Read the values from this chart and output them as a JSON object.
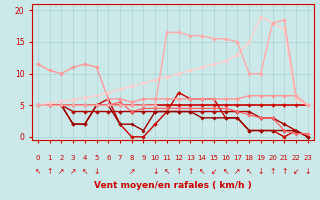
{
  "xlabel": "Vent moyen/en rafales ( km/h )",
  "xlim": [
    -0.5,
    23.5
  ],
  "ylim": [
    -0.5,
    21
  ],
  "yticks": [
    0,
    5,
    10,
    15,
    20
  ],
  "xticks": [
    0,
    1,
    2,
    3,
    4,
    5,
    6,
    7,
    8,
    9,
    10,
    11,
    12,
    13,
    14,
    15,
    16,
    17,
    18,
    19,
    20,
    21,
    22,
    23
  ],
  "bg_color": "#cce9e9",
  "grid_color": "#aad4d4",
  "lines": [
    {
      "x": [
        0,
        1,
        2,
        3,
        4,
        5,
        6,
        7,
        8,
        9,
        10,
        11,
        12,
        13,
        14,
        15,
        16,
        17,
        18,
        19,
        20,
        21,
        22,
        23
      ],
      "y": [
        5,
        5,
        5,
        5,
        5,
        5,
        5,
        5,
        5,
        5,
        5,
        5,
        5,
        5,
        5,
        5,
        5,
        5,
        5,
        5,
        5,
        5,
        5,
        5
      ],
      "color": "#cc0000",
      "lw": 1.2,
      "marker": "D",
      "ms": 2.0
    },
    {
      "x": [
        0,
        1,
        2,
        3,
        4,
        5,
        6,
        7,
        8,
        9,
        10,
        11,
        12,
        13,
        14,
        15,
        16,
        17,
        18,
        19,
        20,
        21,
        22,
        23
      ],
      "y": [
        5,
        5,
        5,
        4,
        4,
        4,
        4,
        4,
        4,
        4,
        4,
        4,
        4,
        4,
        4,
        4,
        4,
        4,
        4,
        3,
        3,
        2,
        1,
        0
      ],
      "color": "#aa0000",
      "lw": 1.0,
      "marker": "D",
      "ms": 2.0
    },
    {
      "x": [
        0,
        1,
        2,
        3,
        4,
        5,
        6,
        7,
        8,
        9,
        10,
        11,
        12,
        13,
        14,
        15,
        16,
        17,
        18,
        19,
        20,
        21,
        22,
        23
      ],
      "y": [
        5,
        5,
        5,
        2,
        2,
        5,
        6,
        2,
        0,
        0,
        2,
        4,
        7,
        6,
        6,
        6,
        3,
        3,
        1,
        1,
        1,
        0,
        1,
        0
      ],
      "color": "#cc0000",
      "lw": 1.0,
      "marker": "D",
      "ms": 2.0
    },
    {
      "x": [
        0,
        1,
        2,
        3,
        4,
        5,
        6,
        7,
        8,
        9,
        10,
        11,
        12,
        13,
        14,
        15,
        16,
        17,
        18,
        19,
        20,
        21,
        22,
        23
      ],
      "y": [
        5,
        5,
        5,
        2,
        2,
        5,
        5,
        2,
        2,
        1,
        4,
        4,
        4,
        4,
        3,
        3,
        3,
        3,
        1,
        1,
        1,
        1,
        1,
        0
      ],
      "color": "#990000",
      "lw": 1.0,
      "marker": "D",
      "ms": 1.8
    },
    {
      "x": [
        0,
        1,
        2,
        3,
        4,
        5,
        6,
        7,
        8,
        9,
        10,
        11,
        12,
        13,
        14,
        15,
        16,
        17,
        18,
        19,
        20,
        21,
        22,
        23
      ],
      "y": [
        11.5,
        10.5,
        10,
        11,
        11.5,
        11,
        6,
        6,
        5.5,
        6,
        6,
        6,
        6,
        6,
        6,
        6,
        6,
        6,
        6.5,
        6.5,
        6.5,
        6.5,
        6.5,
        5
      ],
      "color": "#ff9999",
      "lw": 1.0,
      "marker": "D",
      "ms": 2.0
    },
    {
      "x": [
        0,
        1,
        2,
        3,
        4,
        5,
        6,
        7,
        8,
        9,
        10,
        11,
        12,
        13,
        14,
        15,
        16,
        17,
        18,
        19,
        20,
        21,
        22,
        23
      ],
      "y": [
        5,
        5,
        5,
        5,
        5,
        5,
        5,
        5.5,
        4,
        4.5,
        4.5,
        4.5,
        4.5,
        4.5,
        4.5,
        4.5,
        4.5,
        4,
        3.5,
        3,
        3,
        1,
        0.5,
        0.5
      ],
      "color": "#ff6666",
      "lw": 0.9,
      "marker": "D",
      "ms": 1.8
    },
    {
      "x": [
        0,
        1,
        2,
        3,
        4,
        5,
        6,
        7,
        8,
        9,
        10,
        11,
        12,
        13,
        14,
        15,
        16,
        17,
        18,
        19,
        20,
        21,
        22,
        23
      ],
      "y": [
        5,
        5.3,
        5.6,
        5.9,
        6.2,
        6.5,
        7,
        7.5,
        8,
        8.5,
        9,
        9.5,
        10,
        10.5,
        11,
        11.5,
        12,
        13,
        15,
        19,
        18,
        17,
        6,
        5
      ],
      "color": "#ffcccc",
      "lw": 1.0,
      "marker": "D",
      "ms": 2.0
    },
    {
      "x": [
        0,
        1,
        2,
        3,
        4,
        5,
        6,
        7,
        8,
        9,
        10,
        11,
        12,
        13,
        14,
        15,
        16,
        17,
        18,
        19,
        20,
        21,
        22,
        23
      ],
      "y": [
        5,
        5,
        5,
        5,
        5,
        5,
        5,
        5,
        5,
        5,
        5,
        16.5,
        16.5,
        16,
        16,
        15.5,
        15.5,
        15,
        10,
        10,
        18,
        18.5,
        6.5,
        5
      ],
      "color": "#ffaaaa",
      "lw": 1.0,
      "marker": "D",
      "ms": 2.0
    }
  ],
  "wind_symbols": [
    "↖",
    "↑",
    "↗",
    "↗",
    "↖",
    "↓",
    "",
    "",
    "↗",
    "",
    "↓",
    "↖",
    "↑",
    "↑",
    "↖",
    "↙",
    "↖",
    "↗",
    "↖",
    "↓",
    "↑",
    "↑",
    "↙",
    "↓"
  ],
  "wind_color": "#cc0000",
  "wind_fontsize": 5.5
}
